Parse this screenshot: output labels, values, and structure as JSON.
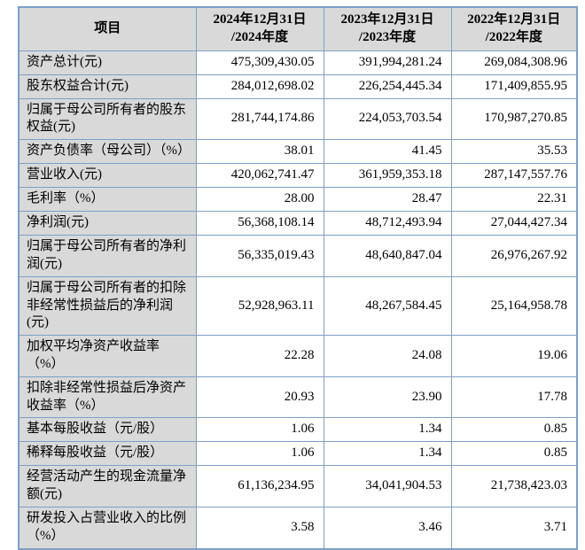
{
  "colors": {
    "border_blue": "#7f9fc6",
    "header_bg": "#d9d9d9",
    "label_bg": "#d9d9d9",
    "cell_bg": "#ffffff",
    "text": "#000000"
  },
  "table": {
    "headers": [
      "项目",
      "2024年12月31日\n/2024年度",
      "2023年12月31日\n/2023年度",
      "2022年12月31日\n/2022年度"
    ],
    "rows": [
      {
        "label": "资产总计(元)",
        "values": [
          "475,309,430.05",
          "391,994,281.24",
          "269,084,308.96"
        ]
      },
      {
        "label": "股东权益合计(元)",
        "values": [
          "284,012,698.02",
          "226,254,445.34",
          "171,409,855.95"
        ]
      },
      {
        "label": "归属于母公司所有者的股东权益(元)",
        "values": [
          "281,744,174.86",
          "224,053,703.54",
          "170,987,270.85"
        ]
      },
      {
        "label": "资产负债率（母公司）（%）",
        "values": [
          "38.01",
          "41.45",
          "35.53"
        ]
      },
      {
        "label": "营业收入(元)",
        "values": [
          "420,062,741.47",
          "361,959,353.18",
          "287,147,557.76"
        ]
      },
      {
        "label": "毛利率（%）",
        "values": [
          "28.00",
          "28.47",
          "22.31"
        ]
      },
      {
        "label": "净利润(元)",
        "values": [
          "56,368,108.14",
          "48,712,493.94",
          "27,044,427.34"
        ]
      },
      {
        "label": "归属于母公司所有者的净利润(元)",
        "values": [
          "56,335,019.43",
          "48,640,847.04",
          "26,976,267.92"
        ]
      },
      {
        "label": "归属于母公司所有者的扣除非经常性损益后的净利润(元)",
        "values": [
          "52,928,963.11",
          "48,267,584.45",
          "25,164,958.78"
        ]
      },
      {
        "label": "加权平均净资产收益率（%）",
        "values": [
          "22.28",
          "24.08",
          "19.06"
        ]
      },
      {
        "label": "扣除非经常性损益后净资产收益率（%）",
        "values": [
          "20.93",
          "23.90",
          "17.78"
        ]
      },
      {
        "label": "基本每股收益（元/股）",
        "values": [
          "1.06",
          "1.34",
          "0.85"
        ]
      },
      {
        "label": "稀释每股收益（元/股）",
        "values": [
          "1.06",
          "1.34",
          "0.85"
        ]
      },
      {
        "label": "经营活动产生的现金流量净额(元)",
        "values": [
          "61,136,234.95",
          "34,041,904.53",
          "21,738,423.03"
        ]
      },
      {
        "label": "研发投入占营业收入的比例（%）",
        "values": [
          "3.58",
          "3.46",
          "3.71"
        ]
      }
    ]
  }
}
